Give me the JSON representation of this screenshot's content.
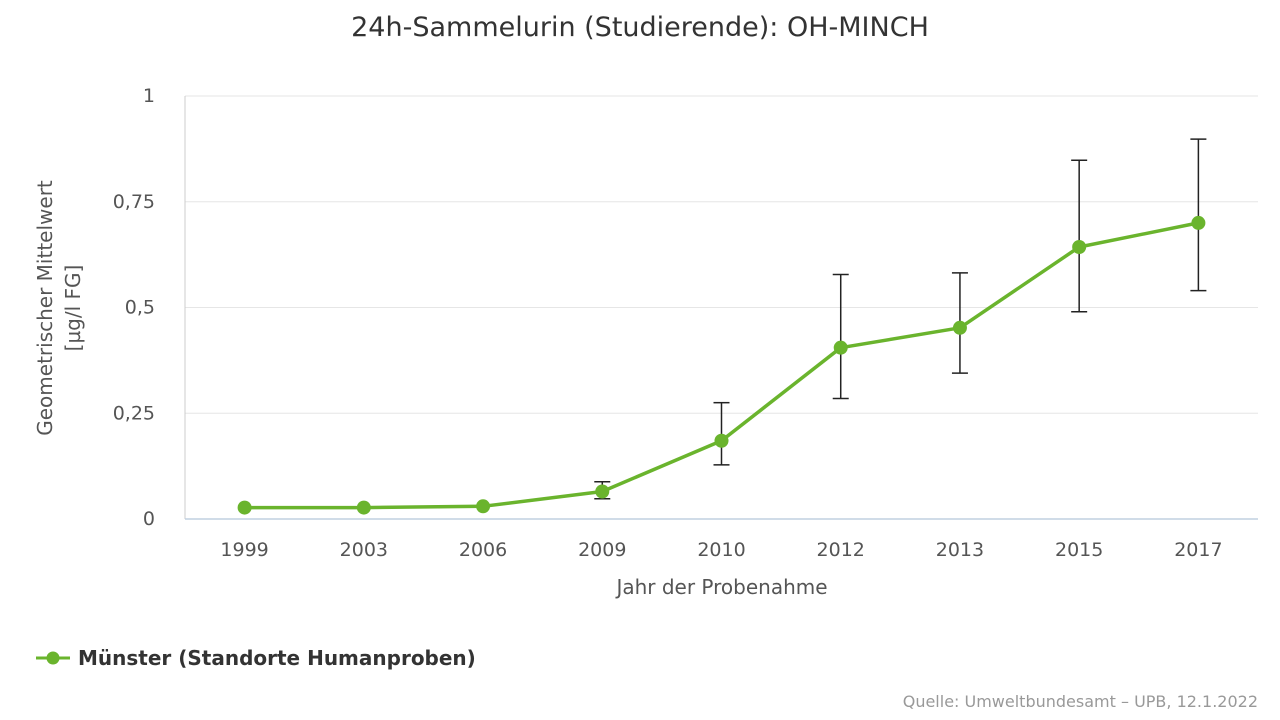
{
  "chart_data": {
    "type": "line",
    "title": "24h-Sammelurin (Studierende): OH-MINCH",
    "xlabel": "Jahr der Probenahme",
    "ylabel_lines": [
      "Geometrischer Mittelwert",
      "[µg/l FG]"
    ],
    "categories": [
      "1999",
      "2003",
      "2006",
      "2009",
      "2010",
      "2012",
      "2013",
      "2015",
      "2017"
    ],
    "ylim": [
      0,
      1
    ],
    "yticks": [
      0,
      0.25,
      0.5,
      0.75,
      1
    ],
    "ytick_labels": [
      "0",
      "0,25",
      "0,5",
      "0,75",
      "1"
    ],
    "grid": true,
    "legend_position": "bottom-left",
    "series": [
      {
        "name": "Münster (Standorte Humanproben)",
        "color": "#6ab42d",
        "values": [
          0.027,
          0.027,
          0.03,
          0.065,
          0.185,
          0.405,
          0.452,
          0.643,
          0.7
        ],
        "error_low": [
          null,
          null,
          null,
          0.048,
          0.128,
          0.285,
          0.345,
          0.49,
          0.54
        ],
        "error_high": [
          null,
          null,
          null,
          0.088,
          0.275,
          0.578,
          0.582,
          0.848,
          0.898
        ]
      }
    ]
  },
  "credits": "Quelle: Umweltbundesamt – UPB, 12.1.2022"
}
